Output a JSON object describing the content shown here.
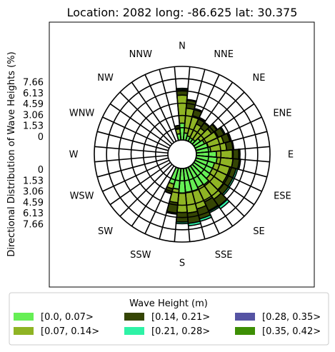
{
  "chart_data": {
    "type": "polar-bar",
    "title": "Location: 2082 long: -86.625 lat: 30.375",
    "ylabel": "Directional Distribution of Wave Heights (%)",
    "radial_ticks_upper": [
      "7.66",
      "6.13",
      "4.59",
      "3.06",
      "1.53",
      "0"
    ],
    "radial_ticks_lower": [
      "0",
      "1.53",
      "3.06",
      "4.59",
      "6.13",
      "7.66"
    ],
    "rmax": 9.19,
    "compass_labels": [
      "N",
      "NNE",
      "NE",
      "ENE",
      "E",
      "ESE",
      "SE",
      "SSE",
      "S",
      "SSW",
      "SW",
      "WSW",
      "W",
      "WNW",
      "NW",
      "NNW"
    ],
    "sectors": 36,
    "legend": {
      "title": "Wave Height (m)",
      "entries": [
        {
          "label": "[0.0, 0.07>",
          "color": "#66ef55"
        },
        {
          "label": "[0.14, 0.21>",
          "color": "#354504"
        },
        {
          "label": "[0.28, 0.35>",
          "color": "#5553a3"
        },
        {
          "label": "[0.07, 0.14>",
          "color": "#8fb424"
        },
        {
          "label": "[0.21, 0.28>",
          "color": "#2ef2a6"
        },
        {
          "label": "[0.35, 0.42>",
          "color": "#3d8f05"
        }
      ]
    },
    "series": [
      {
        "name": "[0.0, 0.07>",
        "color": "#66ef55",
        "values": [
          2.1,
          0.9,
          0.6,
          0.5,
          0.5,
          1.0,
          1.3,
          1.6,
          1.8,
          2.5,
          2.6,
          2.4,
          2.4,
          2.5,
          2.9,
          2.8,
          3.0,
          3.0,
          3.1,
          2.6,
          2.1,
          0,
          0,
          0,
          0,
          0,
          0,
          0,
          0,
          0,
          0,
          0,
          0,
          0,
          0,
          0.8
        ]
      },
      {
        "name": "[0.07, 0.14>",
        "color": "#8fb424",
        "values": [
          3.5,
          3.1,
          2.6,
          1.9,
          1.7,
          1.7,
          1.9,
          2.0,
          2.0,
          2.0,
          2.0,
          2.0,
          2.0,
          2.0,
          2.2,
          2.0,
          2.3,
          2.6,
          2.4,
          1.7,
          0.6,
          0,
          0,
          0,
          0,
          0,
          0,
          0,
          0,
          0,
          0,
          0,
          0,
          0,
          0,
          0.6
        ]
      },
      {
        "name": "[0.14, 0.21>",
        "color": "#354504",
        "values": [
          0.7,
          1.0,
          0.8,
          0.8,
          0.8,
          0.8,
          0.8,
          0.8,
          0.8,
          0.8,
          0.8,
          0.8,
          0.8,
          0.8,
          1.1,
          1.2,
          1.3,
          1.3,
          1.2,
          1.3,
          0.6,
          0,
          0,
          0,
          0,
          0,
          0,
          0,
          0,
          0,
          0,
          0,
          0,
          0,
          0,
          0.4
        ]
      },
      {
        "name": "[0.21, 0.28>",
        "color": "#2ef2a6",
        "values": [
          0.15,
          0.1,
          0.15,
          0.1,
          0.1,
          0.1,
          0.15,
          0.1,
          0.1,
          0.15,
          0.15,
          0.2,
          0.2,
          0.2,
          0.35,
          0.3,
          0.3,
          0.3,
          0.2,
          0.15,
          0.05,
          0,
          0,
          0,
          0,
          0,
          0,
          0,
          0,
          0,
          0,
          0,
          0,
          0,
          0,
          0.05
        ]
      },
      {
        "name": "[0.28, 0.35>",
        "color": "#5553a3",
        "values": [
          0,
          0,
          0,
          0,
          0,
          0,
          0,
          0,
          0,
          0,
          0,
          0,
          0,
          0,
          0,
          0,
          0,
          0,
          0,
          0,
          0,
          0,
          0,
          0,
          0,
          0,
          0,
          0,
          0,
          0,
          0,
          0,
          0,
          0,
          0,
          0
        ]
      },
      {
        "name": "[0.35, 0.42>",
        "color": "#3d8f05",
        "values": [
          0,
          0,
          0,
          0,
          0,
          0,
          0,
          0,
          0,
          0,
          0,
          0,
          0,
          0,
          0,
          0,
          0,
          0,
          0,
          0,
          0,
          0,
          0,
          0,
          0,
          0,
          0,
          0,
          0,
          0,
          0,
          0,
          0,
          0,
          0,
          0
        ]
      }
    ]
  }
}
